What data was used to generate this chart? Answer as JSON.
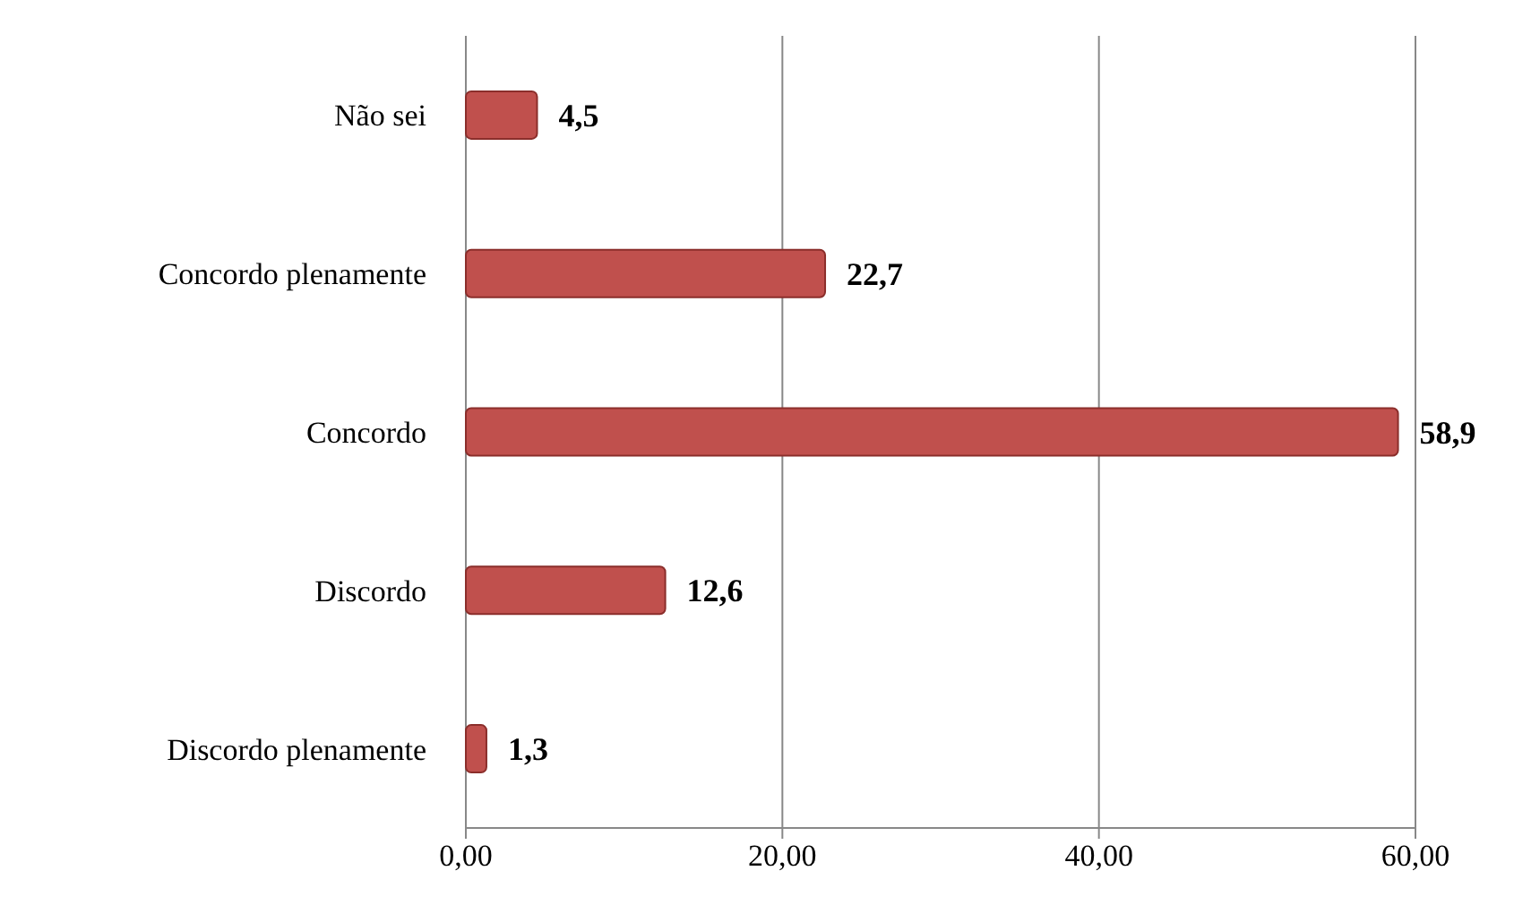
{
  "chart_data": {
    "type": "bar",
    "orientation": "horizontal",
    "categories": [
      "Não sei",
      "Concordo plenamente",
      "Concordo",
      "Discordo",
      "Discordo plenamente"
    ],
    "values": [
      4.5,
      22.7,
      58.9,
      12.6,
      1.3
    ],
    "value_labels": [
      "4,5",
      "22,7",
      "58,9",
      "12,6",
      "1,3"
    ],
    "color": "#c0504d",
    "xlim": [
      0,
      60
    ],
    "xticks": [
      {
        "value": 0,
        "label": "0,00"
      },
      {
        "value": 20,
        "label": "20,00"
      },
      {
        "value": 40,
        "label": "40,00"
      },
      {
        "value": 60,
        "label": "60,00"
      }
    ],
    "grid": "x"
  }
}
